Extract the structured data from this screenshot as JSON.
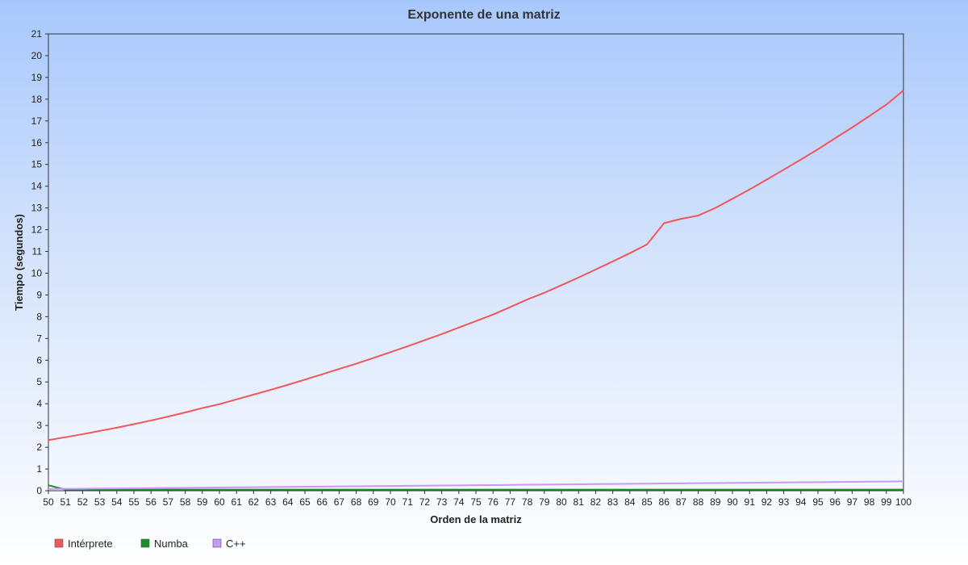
{
  "chart_data": {
    "type": "line",
    "title": "Exponente de una matriz",
    "xlabel": "Orden de la matriz",
    "ylabel": "Tiempo (segundos)",
    "xlim": [
      50,
      100
    ],
    "ylim": [
      0,
      21
    ],
    "x": [
      50,
      51,
      52,
      53,
      54,
      55,
      56,
      57,
      58,
      59,
      60,
      61,
      62,
      63,
      64,
      65,
      66,
      67,
      68,
      69,
      70,
      71,
      72,
      73,
      74,
      75,
      76,
      77,
      78,
      79,
      80,
      81,
      82,
      83,
      84,
      85,
      86,
      87,
      88,
      89,
      90,
      91,
      92,
      93,
      94,
      95,
      96,
      97,
      98,
      99,
      100
    ],
    "x_ticks": [
      50,
      51,
      52,
      53,
      54,
      55,
      56,
      57,
      58,
      59,
      60,
      61,
      62,
      63,
      64,
      65,
      66,
      67,
      68,
      69,
      70,
      71,
      72,
      73,
      74,
      75,
      76,
      77,
      78,
      79,
      80,
      81,
      82,
      83,
      84,
      85,
      86,
      87,
      88,
      89,
      90,
      91,
      92,
      93,
      94,
      95,
      96,
      97,
      98,
      99,
      100
    ],
    "y_ticks": [
      0,
      1,
      2,
      3,
      4,
      5,
      6,
      7,
      8,
      9,
      10,
      11,
      12,
      13,
      14,
      15,
      16,
      17,
      18,
      19,
      20,
      21
    ],
    "grid": false,
    "legend_position": "bottom-left",
    "series": [
      {
        "name": "Intérprete",
        "color": "#f0575a",
        "values": [
          2.33,
          2.46,
          2.6,
          2.75,
          2.9,
          3.06,
          3.23,
          3.41,
          3.6,
          3.8,
          3.98,
          4.2,
          4.42,
          4.64,
          4.87,
          5.11,
          5.35,
          5.6,
          5.84,
          6.1,
          6.37,
          6.64,
          6.92,
          7.2,
          7.5,
          7.8,
          8.1,
          8.44,
          8.79,
          9.1,
          9.45,
          9.8,
          10.17,
          10.54,
          10.92,
          11.32,
          12.3,
          12.5,
          12.65,
          13.0,
          13.42,
          13.85,
          14.3,
          14.76,
          15.22,
          15.7,
          16.2,
          16.7,
          17.22,
          17.75,
          18.4
        ]
      },
      {
        "name": "Numba",
        "color": "#1a8f2a",
        "values": [
          0.25,
          0.05,
          0.05,
          0.05,
          0.05,
          0.05,
          0.05,
          0.05,
          0.05,
          0.05,
          0.05,
          0.05,
          0.05,
          0.05,
          0.05,
          0.05,
          0.05,
          0.05,
          0.05,
          0.05,
          0.05,
          0.05,
          0.05,
          0.05,
          0.05,
          0.05,
          0.05,
          0.05,
          0.05,
          0.05,
          0.05,
          0.05,
          0.05,
          0.05,
          0.05,
          0.05,
          0.05,
          0.05,
          0.05,
          0.05,
          0.05,
          0.05,
          0.05,
          0.05,
          0.05,
          0.05,
          0.05,
          0.05,
          0.05,
          0.05,
          0.05
        ]
      },
      {
        "name": "C++",
        "color": "#c89af5",
        "values": [
          0.08,
          0.087,
          0.094,
          0.101,
          0.108,
          0.115,
          0.122,
          0.129,
          0.136,
          0.143,
          0.15,
          0.157,
          0.164,
          0.171,
          0.178,
          0.185,
          0.192,
          0.199,
          0.206,
          0.213,
          0.22,
          0.227,
          0.234,
          0.241,
          0.248,
          0.255,
          0.262,
          0.269,
          0.276,
          0.283,
          0.29,
          0.297,
          0.304,
          0.311,
          0.318,
          0.325,
          0.332,
          0.339,
          0.346,
          0.353,
          0.36,
          0.367,
          0.374,
          0.381,
          0.388,
          0.395,
          0.402,
          0.409,
          0.416,
          0.423,
          0.43
        ]
      }
    ]
  }
}
